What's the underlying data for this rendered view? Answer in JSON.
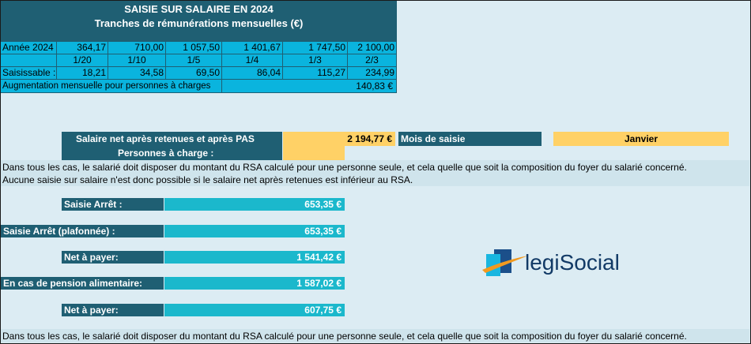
{
  "header": {
    "title": "SAISIE SUR SALAIRE EN 2024",
    "subtitle": "Tranches de rémunérations mensuelles (€)"
  },
  "brackets": {
    "year_label": "Année 2024",
    "amounts": [
      "364,17",
      "710,00",
      "1 057,50",
      "1 401,67",
      "1 747,50",
      "2 100,00"
    ],
    "fractions": [
      "1/20",
      "1/10",
      "1/5",
      "1/4",
      "1/3",
      "2/3"
    ],
    "seizable_label": "Saisissable :",
    "seizable": [
      "18,21",
      "34,58",
      "69,50",
      "86,04",
      "115,27",
      "234,99"
    ],
    "increase_label": "Augmentation mensuelle pour personnes à charges",
    "increase_value": "140,83 €"
  },
  "inputs": {
    "net_salary_label": "Salaire net après retenues et après PAS",
    "net_salary_value": "2 194,77 €",
    "month_label": "Mois de saisie",
    "month_value": "Janvier",
    "dependents_label": "Personnes à charge :",
    "dependents_value": ""
  },
  "notes": {
    "line1": "Dans tous les cas, le salarié doit disposer du montant du RSA calculé pour une personne seule, et cela quelle que soit la composition du foyer du salarié concerné.",
    "line2": "Aucune saisie sur salaire n'est donc possible si le salaire net après retenues est inférieur au RSA.",
    "bottom": "Dans tous les cas, le salarié doit disposer du montant du RSA calculé pour une personne seule, et cela quelle que soit la composition du foyer du salarié concerné."
  },
  "results": {
    "saisie_label": "Saisie Arrêt   :",
    "saisie_value": "653,35 €",
    "saisie_plaf_label": "Saisie Arrêt (plafonnée)  :",
    "saisie_plaf_value": "653,35 €",
    "net_label": "Net à payer:",
    "net_value": "1 541,42 €",
    "pension_label": "En cas de pension alimentaire:",
    "pension_value": "1 587,02 €",
    "net2_label": "Net à payer:",
    "net2_value": "607,75 €"
  },
  "logo": {
    "text": "legiSocial",
    "icon": "legisocial-logo-icon"
  },
  "colors": {
    "teal": "#1f5f73",
    "cyan": "#0ab4de",
    "aqua": "#1bb8cc",
    "gold": "#ffd166",
    "background": "#dcecf3"
  }
}
